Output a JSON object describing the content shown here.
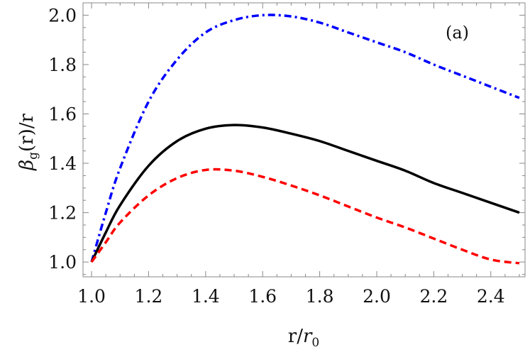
{
  "chart_data": {
    "type": "line",
    "title": "",
    "annotation": "(a)",
    "xlabel": {
      "main": "r/",
      "italic": "r",
      "sub": "0"
    },
    "ylabel": {
      "greek": "β",
      "sub": "g",
      "rest": "(r)/r"
    },
    "xlim": [
      0.97,
      2.52
    ],
    "ylim": [
      0.94,
      2.05
    ],
    "xticks": [
      "1.0",
      "1.2",
      "1.4",
      "1.6",
      "1.8",
      "2.0",
      "2.2",
      "2.4"
    ],
    "yticks": [
      "1.0",
      "1.2",
      "1.4",
      "1.6",
      "1.8",
      "2.0"
    ],
    "grid": false,
    "legend": "none",
    "x": [
      1.0,
      1.05,
      1.1,
      1.2,
      1.3,
      1.4,
      1.5,
      1.6,
      1.7,
      1.8,
      1.9,
      2.0,
      2.1,
      2.2,
      2.3,
      2.4,
      2.5
    ],
    "series": [
      {
        "color": "#0000ff",
        "style": "dash-dot",
        "values": [
          1.0,
          1.2,
          1.38,
          1.65,
          1.82,
          1.93,
          1.98,
          2.0,
          1.995,
          1.97,
          1.93,
          1.89,
          1.85,
          1.8,
          1.755,
          1.71,
          1.665
        ]
      },
      {
        "color": "#000000",
        "style": "solid",
        "values": [
          1.0,
          1.12,
          1.23,
          1.39,
          1.49,
          1.54,
          1.555,
          1.545,
          1.52,
          1.49,
          1.45,
          1.41,
          1.37,
          1.32,
          1.28,
          1.24,
          1.2
        ]
      },
      {
        "color": "#ff0000",
        "style": "dashed",
        "values": [
          1.0,
          1.08,
          1.16,
          1.27,
          1.34,
          1.373,
          1.37,
          1.345,
          1.31,
          1.27,
          1.225,
          1.18,
          1.14,
          1.095,
          1.05,
          1.01,
          0.995
        ]
      }
    ]
  }
}
